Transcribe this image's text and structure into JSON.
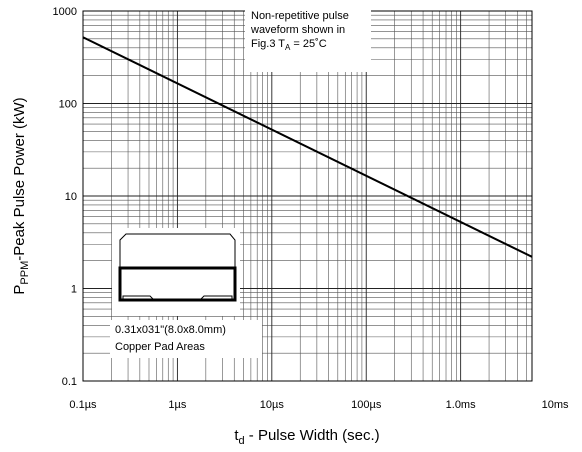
{
  "chart_data": {
    "type": "line",
    "x_scale": "log",
    "y_scale": "log",
    "x_label": [
      "t",
      "d",
      " - Pulse Width (sec.)"
    ],
    "y_label": [
      "P",
      "PPM",
      "-Peak Pulse Power (kW)"
    ],
    "x": [
      1e-07,
      0.0057
    ],
    "series": [
      {
        "values": [
          520,
          2.2
        ],
        "color": "#000000"
      }
    ],
    "xlim": [
      1e-07,
      0.0057
    ],
    "ylim": [
      0.1,
      1000
    ],
    "xticks": [
      {
        "value": 1e-07,
        "label": "0.1µs"
      },
      {
        "value": 1e-06,
        "label": "1µs"
      },
      {
        "value": 1e-05,
        "label": "10µs"
      },
      {
        "value": 0.0001,
        "label": "100µs"
      },
      {
        "value": 0.001,
        "label": "1.0ms"
      },
      {
        "value": 0.01,
        "label": "10ms"
      }
    ],
    "yticks": [
      0.1,
      1,
      10,
      100,
      1000
    ],
    "grid": true,
    "note": [
      "Non-repetitive pulse",
      "waveform shown in",
      [
        "Fig.3 T",
        "A",
        " = 25˚C"
      ]
    ],
    "inset_label": [
      "0.31x031\"(8.0x8.0mm)",
      "Copper Pad Areas"
    ]
  }
}
